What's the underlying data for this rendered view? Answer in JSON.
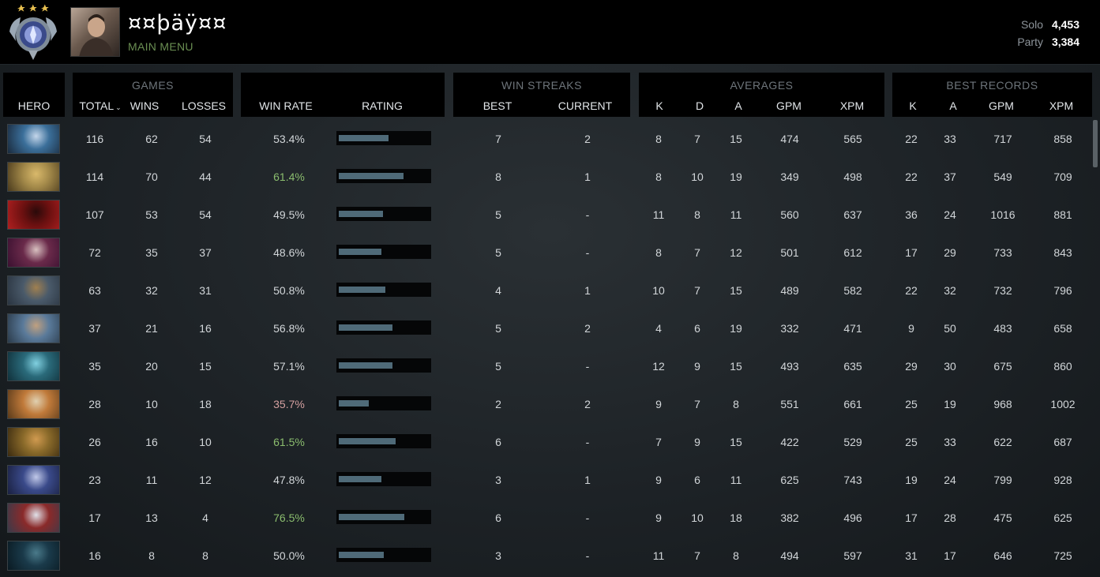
{
  "player": {
    "name": "¤¤þäÿ¤¤",
    "menu_link": "MAIN MENU",
    "mmr": [
      {
        "label": "Solo",
        "value": "4,453"
      },
      {
        "label": "Party",
        "value": "3,384"
      }
    ]
  },
  "headers": {
    "hero": "HERO",
    "games": {
      "title": "GAMES",
      "total": "TOTAL",
      "wins": "WINS",
      "losses": "LOSSES"
    },
    "winrate": {
      "win_rate": "WIN RATE",
      "rating": "RATING"
    },
    "streaks": {
      "title": "WIN STREAKS",
      "best": "BEST",
      "current": "CURRENT"
    },
    "averages": {
      "title": "AVERAGES",
      "k": "K",
      "d": "D",
      "a": "A",
      "gpm": "GPM",
      "xpm": "XPM"
    },
    "best_records": {
      "title": "BEST RECORDS",
      "k": "K",
      "a": "A",
      "gpm": "GPM",
      "xpm": "XPM"
    },
    "sort_icon": "chevron-down-icon"
  },
  "colors": {
    "winrate_high": "#8bbd6e",
    "winrate_low": "#d4a0a0",
    "winrate_neutral": "#d2d6d9",
    "bar": "#4f6a78",
    "menu_link": "#6a8e52"
  },
  "rows": [
    {
      "hero_icon": "hero-portrait-1",
      "colors": [
        "#3b6f9a",
        "#c4d6ea",
        "#1a2a3d"
      ],
      "total": "116",
      "wins": "62",
      "losses": "54",
      "win_rate": "53.4%",
      "rating": 0.55,
      "best_streak": "7",
      "current_streak": "2",
      "avg_k": "8",
      "avg_d": "7",
      "avg_a": "15",
      "avg_gpm": "474",
      "avg_xpm": "565",
      "rec_k": "22",
      "rec_a": "33",
      "rec_gpm": "717",
      "rec_xpm": "858"
    },
    {
      "hero_icon": "hero-portrait-2",
      "colors": [
        "#a48a4a",
        "#d9b96b",
        "#4a3a1c"
      ],
      "total": "114",
      "wins": "70",
      "losses": "44",
      "win_rate": "61.4%",
      "rating": 0.72,
      "best_streak": "8",
      "current_streak": "1",
      "avg_k": "8",
      "avg_d": "10",
      "avg_a": "19",
      "avg_gpm": "349",
      "avg_xpm": "498",
      "rec_k": "22",
      "rec_a": "37",
      "rec_gpm": "549",
      "rec_xpm": "709"
    },
    {
      "hero_icon": "hero-portrait-3",
      "colors": [
        "#6a1010",
        "#2a0a0a",
        "#b02020"
      ],
      "total": "107",
      "wins": "53",
      "losses": "54",
      "win_rate": "49.5%",
      "rating": 0.49,
      "best_streak": "5",
      "current_streak": "-",
      "avg_k": "11",
      "avg_d": "8",
      "avg_a": "11",
      "avg_gpm": "560",
      "avg_xpm": "637",
      "rec_k": "36",
      "rec_a": "24",
      "rec_gpm": "1016",
      "rec_xpm": "881"
    },
    {
      "hero_icon": "hero-portrait-4",
      "colors": [
        "#6a2a4a",
        "#d8c0c0",
        "#3a1030"
      ],
      "total": "72",
      "wins": "35",
      "losses": "37",
      "win_rate": "48.6%",
      "rating": 0.47,
      "best_streak": "5",
      "current_streak": "-",
      "avg_k": "8",
      "avg_d": "7",
      "avg_a": "12",
      "avg_gpm": "501",
      "avg_xpm": "612",
      "rec_k": "17",
      "rec_a": "29",
      "rec_gpm": "733",
      "rec_xpm": "843"
    },
    {
      "hero_icon": "hero-portrait-5",
      "colors": [
        "#4a5a6a",
        "#a08050",
        "#2a3440"
      ],
      "total": "63",
      "wins": "32",
      "losses": "31",
      "win_rate": "50.8%",
      "rating": 0.52,
      "best_streak": "4",
      "current_streak": "1",
      "avg_k": "10",
      "avg_d": "7",
      "avg_a": "15",
      "avg_gpm": "489",
      "avg_xpm": "582",
      "rec_k": "22",
      "rec_a": "32",
      "rec_gpm": "732",
      "rec_xpm": "796"
    },
    {
      "hero_icon": "hero-portrait-6",
      "colors": [
        "#5a7a9a",
        "#c0a080",
        "#2a3a4a"
      ],
      "total": "37",
      "wins": "21",
      "losses": "16",
      "win_rate": "56.8%",
      "rating": 0.6,
      "best_streak": "5",
      "current_streak": "2",
      "avg_k": "4",
      "avg_d": "6",
      "avg_a": "19",
      "avg_gpm": "332",
      "avg_xpm": "471",
      "rec_k": "9",
      "rec_a": "50",
      "rec_gpm": "483",
      "rec_xpm": "658"
    },
    {
      "hero_icon": "hero-portrait-7",
      "colors": [
        "#2a6a7a",
        "#80d0e0",
        "#10303a"
      ],
      "total": "35",
      "wins": "20",
      "losses": "15",
      "win_rate": "57.1%",
      "rating": 0.6,
      "best_streak": "5",
      "current_streak": "-",
      "avg_k": "12",
      "avg_d": "9",
      "avg_a": "15",
      "avg_gpm": "493",
      "avg_xpm": "635",
      "rec_k": "29",
      "rec_a": "30",
      "rec_gpm": "675",
      "rec_xpm": "860"
    },
    {
      "hero_icon": "hero-portrait-8",
      "colors": [
        "#c07a3a",
        "#e0d0b0",
        "#5a3a1a"
      ],
      "total": "28",
      "wins": "10",
      "losses": "18",
      "win_rate": "35.7%",
      "rating": 0.33,
      "best_streak": "2",
      "current_streak": "2",
      "avg_k": "9",
      "avg_d": "7",
      "avg_a": "8",
      "avg_gpm": "551",
      "avg_xpm": "661",
      "rec_k": "25",
      "rec_a": "19",
      "rec_gpm": "968",
      "rec_xpm": "1002"
    },
    {
      "hero_icon": "hero-portrait-9",
      "colors": [
        "#8a6a2a",
        "#d09a50",
        "#3a2a10"
      ],
      "total": "26",
      "wins": "16",
      "losses": "10",
      "win_rate": "61.5%",
      "rating": 0.63,
      "best_streak": "6",
      "current_streak": "-",
      "avg_k": "7",
      "avg_d": "9",
      "avg_a": "15",
      "avg_gpm": "422",
      "avg_xpm": "529",
      "rec_k": "25",
      "rec_a": "33",
      "rec_gpm": "622",
      "rec_xpm": "687"
    },
    {
      "hero_icon": "hero-portrait-10",
      "colors": [
        "#3a4a8a",
        "#c0c8e8",
        "#1a2040"
      ],
      "total": "23",
      "wins": "11",
      "losses": "12",
      "win_rate": "47.8%",
      "rating": 0.47,
      "best_streak": "3",
      "current_streak": "1",
      "avg_k": "9",
      "avg_d": "6",
      "avg_a": "11",
      "avg_gpm": "625",
      "avg_xpm": "743",
      "rec_k": "19",
      "rec_a": "24",
      "rec_gpm": "799",
      "rec_xpm": "928"
    },
    {
      "hero_icon": "hero-portrait-11",
      "colors": [
        "#8a2a2a",
        "#e0e0e8",
        "#3a3a4a"
      ],
      "total": "17",
      "wins": "13",
      "losses": "4",
      "win_rate": "76.5%",
      "rating": 0.73,
      "best_streak": "6",
      "current_streak": "-",
      "avg_k": "9",
      "avg_d": "10",
      "avg_a": "18",
      "avg_gpm": "382",
      "avg_xpm": "496",
      "rec_k": "17",
      "rec_a": "28",
      "rec_gpm": "475",
      "rec_xpm": "625"
    },
    {
      "hero_icon": "hero-portrait-12",
      "colors": [
        "#1a3a4a",
        "#4a7a8a",
        "#0a1a22"
      ],
      "total": "16",
      "wins": "8",
      "losses": "8",
      "win_rate": "50.0%",
      "rating": 0.5,
      "best_streak": "3",
      "current_streak": "-",
      "avg_k": "11",
      "avg_d": "7",
      "avg_a": "8",
      "avg_gpm": "494",
      "avg_xpm": "597",
      "rec_k": "31",
      "rec_a": "17",
      "rec_gpm": "646",
      "rec_xpm": "725"
    }
  ]
}
